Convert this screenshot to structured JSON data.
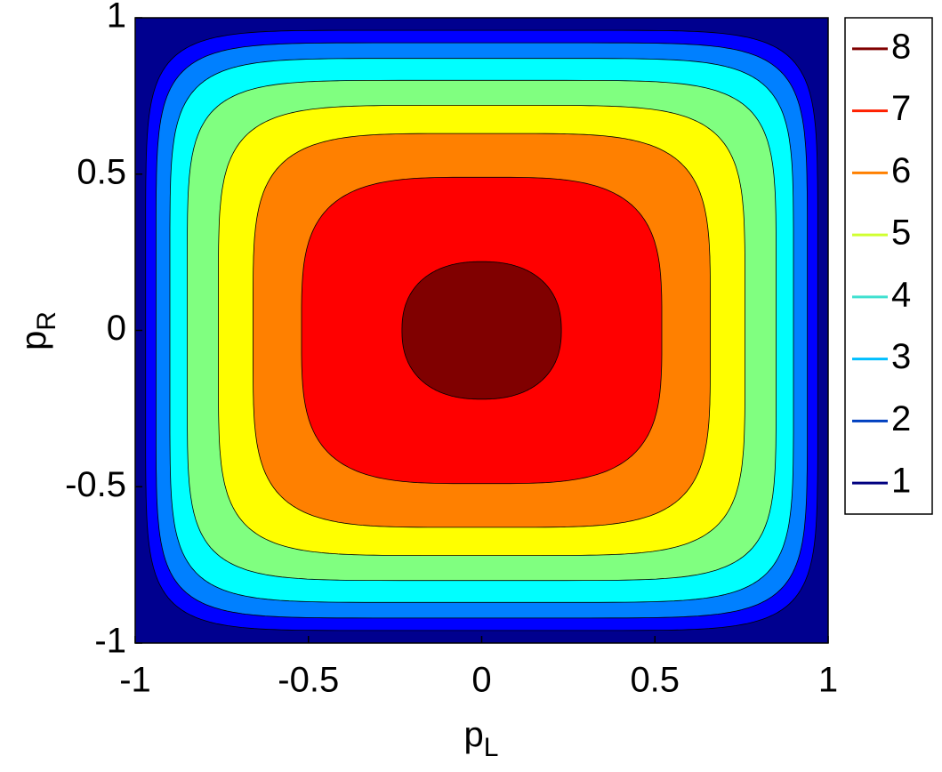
{
  "chart_data": {
    "type": "contour",
    "xlabel": "p",
    "xlabel_sub": "L",
    "ylabel": "p",
    "ylabel_sub": "R",
    "xlim": [
      -1,
      1
    ],
    "ylim": [
      -1,
      1
    ],
    "xticks": [
      -1,
      -0.5,
      0,
      0.5,
      1
    ],
    "yticks": [
      -1,
      -0.5,
      0,
      0.5,
      1
    ],
    "background": "#00008f",
    "levels": [
      {
        "name": "1",
        "color": "#000080",
        "fill": "#0000ff",
        "extent": [
          0.97,
          0.96
        ]
      },
      {
        "name": "2",
        "color": "#0040c0",
        "fill": "#0080ff",
        "extent": [
          0.94,
          0.92
        ]
      },
      {
        "name": "3",
        "color": "#00bfff",
        "fill": "#00ffff",
        "extent": [
          0.9,
          0.87
        ]
      },
      {
        "name": "4",
        "color": "#40e0d0",
        "fill": "#80ff80",
        "extent": [
          0.85,
          0.8
        ]
      },
      {
        "name": "5",
        "color": "#d0ff30",
        "fill": "#ffff00",
        "extent": [
          0.76,
          0.72
        ]
      },
      {
        "name": "6",
        "color": "#ff8000",
        "fill": "#ff8000",
        "extent": [
          0.66,
          0.63
        ]
      },
      {
        "name": "7",
        "color": "#ff2000",
        "fill": "#ff0000",
        "extent": [
          0.52,
          0.49
        ]
      },
      {
        "name": "8",
        "color": "#800000",
        "fill": "#800000",
        "extent": [
          0.23,
          0.22
        ]
      }
    ],
    "legend": "right"
  }
}
